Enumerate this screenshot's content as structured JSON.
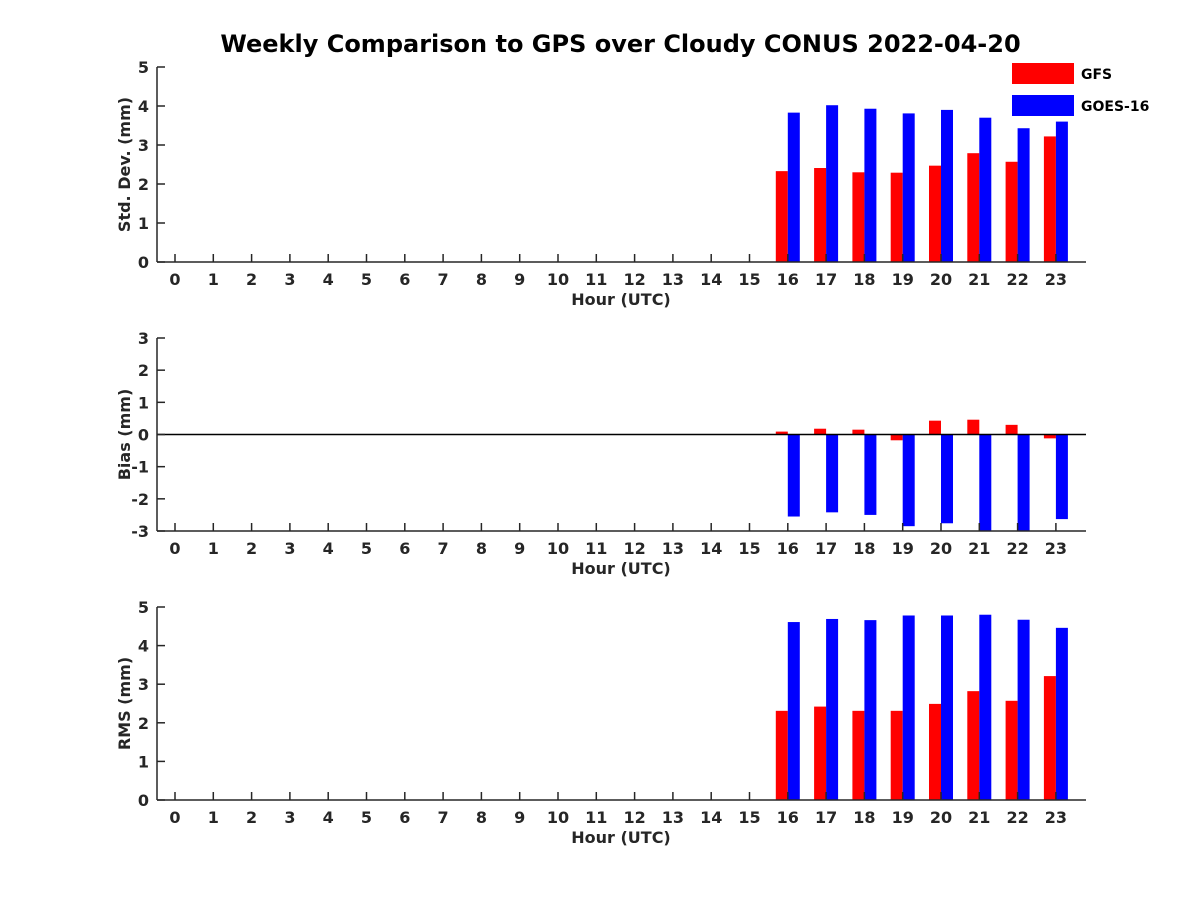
{
  "title": "Weekly Comparison to GPS over Cloudy CONUS 2022-04-20",
  "legend": [
    {
      "label": "GFS",
      "color": "#ff0000"
    },
    {
      "label": "GOES-16",
      "color": "#0000ff"
    }
  ],
  "chart_data": [
    {
      "type": "bar",
      "xlabel": "Hour (UTC)",
      "ylabel": "Std. Dev. (mm)",
      "ylim": [
        0,
        5
      ],
      "yticks": [
        0,
        1,
        2,
        3,
        4,
        5
      ],
      "categories": [
        "0",
        "1",
        "2",
        "3",
        "4",
        "5",
        "6",
        "7",
        "8",
        "9",
        "10",
        "11",
        "12",
        "13",
        "14",
        "15",
        "16",
        "17",
        "18",
        "19",
        "20",
        "21",
        "22",
        "23"
      ],
      "series": [
        {
          "name": "GFS",
          "color": "#ff0000",
          "values": [
            null,
            null,
            null,
            null,
            null,
            null,
            null,
            null,
            null,
            null,
            null,
            null,
            null,
            null,
            null,
            null,
            2.33,
            2.41,
            2.3,
            2.29,
            2.47,
            2.79,
            2.57,
            3.22
          ]
        },
        {
          "name": "GOES-16",
          "color": "#0000ff",
          "values": [
            null,
            null,
            null,
            null,
            null,
            null,
            null,
            null,
            null,
            null,
            null,
            null,
            null,
            null,
            null,
            null,
            3.83,
            4.02,
            3.93,
            3.81,
            3.9,
            3.7,
            3.43,
            3.6
          ]
        }
      ]
    },
    {
      "type": "bar",
      "xlabel": "Hour (UTC)",
      "ylabel": "Bias (mm)",
      "ylim": [
        -3,
        3
      ],
      "yticks": [
        -3,
        -2,
        -1,
        0,
        1,
        2,
        3
      ],
      "zero_line": true,
      "categories": [
        "0",
        "1",
        "2",
        "3",
        "4",
        "5",
        "6",
        "7",
        "8",
        "9",
        "10",
        "11",
        "12",
        "13",
        "14",
        "15",
        "16",
        "17",
        "18",
        "19",
        "20",
        "21",
        "22",
        "23"
      ],
      "series": [
        {
          "name": "GFS",
          "color": "#ff0000",
          "values": [
            null,
            null,
            null,
            null,
            null,
            null,
            null,
            null,
            null,
            null,
            null,
            null,
            null,
            null,
            null,
            null,
            0.09,
            0.18,
            0.15,
            -0.18,
            0.43,
            0.46,
            0.3,
            -0.12
          ]
        },
        {
          "name": "GOES-16",
          "color": "#0000ff",
          "values": [
            null,
            null,
            null,
            null,
            null,
            null,
            null,
            null,
            null,
            null,
            null,
            null,
            null,
            null,
            null,
            null,
            -2.55,
            -2.42,
            -2.5,
            -2.85,
            -2.76,
            -3.0,
            -3.0,
            -2.63
          ]
        }
      ]
    },
    {
      "type": "bar",
      "xlabel": "Hour (UTC)",
      "ylabel": "RMS (mm)",
      "ylim": [
        0,
        5
      ],
      "yticks": [
        0,
        1,
        2,
        3,
        4,
        5
      ],
      "categories": [
        "0",
        "1",
        "2",
        "3",
        "4",
        "5",
        "6",
        "7",
        "8",
        "9",
        "10",
        "11",
        "12",
        "13",
        "14",
        "15",
        "16",
        "17",
        "18",
        "19",
        "20",
        "21",
        "22",
        "23"
      ],
      "series": [
        {
          "name": "GFS",
          "color": "#ff0000",
          "values": [
            null,
            null,
            null,
            null,
            null,
            null,
            null,
            null,
            null,
            null,
            null,
            null,
            null,
            null,
            null,
            null,
            2.31,
            2.42,
            2.31,
            2.31,
            2.49,
            2.82,
            2.57,
            3.21
          ]
        },
        {
          "name": "GOES-16",
          "color": "#0000ff",
          "values": [
            null,
            null,
            null,
            null,
            null,
            null,
            null,
            null,
            null,
            null,
            null,
            null,
            null,
            null,
            null,
            null,
            4.61,
            4.69,
            4.66,
            4.78,
            4.78,
            4.8,
            4.67,
            4.46
          ]
        }
      ]
    }
  ]
}
